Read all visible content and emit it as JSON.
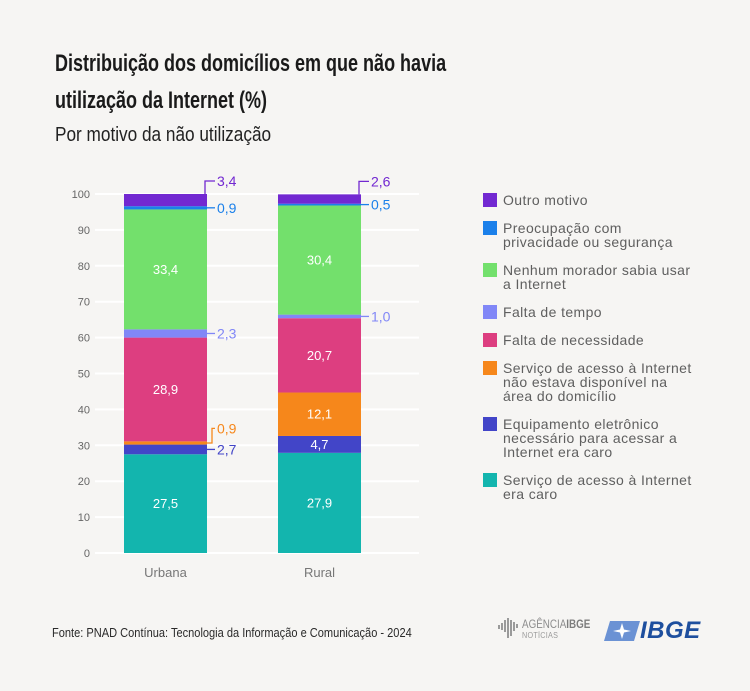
{
  "header": {
    "title_lines": [
      "Distribuição dos domicílios em que não havia",
      "utilização da Internet (%)"
    ],
    "subtitle": "Por motivo da não utilização"
  },
  "chart_data": {
    "type": "bar",
    "stacked": true,
    "title": "Distribuição dos domicílios em que não havia utilização da Internet (%)",
    "subtitle": "Por motivo da não utilização",
    "xlabel": "",
    "ylabel": "",
    "categories": [
      "Urbana",
      "Rural"
    ],
    "ylim": [
      0,
      100
    ],
    "yticks": [
      0,
      10,
      20,
      30,
      40,
      50,
      60,
      70,
      80,
      90,
      100
    ],
    "grid": true,
    "legend_position": "right",
    "series": [
      {
        "name": "Serviço de acesso à Internet era caro",
        "color": "#13b5ae",
        "values": [
          27.5,
          27.9
        ],
        "labels": [
          "27,5",
          "27,9"
        ]
      },
      {
        "name": "Equipamento eletrônico necessário para acessar a Internet era caro",
        "color": "#4245c8",
        "values": [
          2.7,
          4.7
        ],
        "labels": [
          "2,7",
          "4,7"
        ]
      },
      {
        "name": "Serviço de acesso à Internet não estava disponível na área do domicílio",
        "color": "#f6871b",
        "values": [
          0.9,
          12.1
        ],
        "labels": [
          "0,9",
          "12,1"
        ]
      },
      {
        "name": "Falta de necessidade",
        "color": "#dd3e80",
        "values": [
          28.9,
          20.7
        ],
        "labels": [
          "28,9",
          "20,7"
        ]
      },
      {
        "name": "Falta de tempo",
        "color": "#8187f7",
        "values": [
          2.3,
          1.0
        ],
        "labels": [
          "2,3",
          "1,0"
        ]
      },
      {
        "name": "Nenhum morador sabia usar a Internet",
        "color": "#73e06c",
        "values": [
          33.4,
          30.4
        ],
        "labels": [
          "33,4",
          "30,4"
        ]
      },
      {
        "name": "Preocupação com privacidade ou segurança",
        "color": "#1b80ea",
        "values": [
          0.9,
          0.5
        ],
        "labels": [
          "0,9",
          "0,5"
        ]
      },
      {
        "name": "Outro motivo",
        "color": "#7228d1",
        "values": [
          3.4,
          2.6
        ],
        "labels": [
          "3,4",
          "2,6"
        ]
      }
    ]
  },
  "legend": {
    "items": [
      {
        "lines": [
          "Outro motivo"
        ],
        "color": "#7228d1"
      },
      {
        "lines": [
          "Preocupação com",
          "privacidade ou segurança"
        ],
        "color": "#1b80ea"
      },
      {
        "lines": [
          "Nenhum morador sabia usar",
          "a Internet"
        ],
        "color": "#73e06c"
      },
      {
        "lines": [
          "Falta de tempo"
        ],
        "color": "#8187f7"
      },
      {
        "lines": [
          "Falta de necessidade"
        ],
        "color": "#dd3e80"
      },
      {
        "lines": [
          "Serviço de acesso à Internet",
          "não estava disponível na",
          "área do domicílio"
        ],
        "color": "#f6871b"
      },
      {
        "lines": [
          "Equipamento eletrônico",
          "necessário para acessar a",
          "Internet era caro"
        ],
        "color": "#4245c8"
      },
      {
        "lines": [
          "Serviço de acesso à Internet",
          "era caro"
        ],
        "color": "#13b5ae"
      }
    ]
  },
  "footer": {
    "source": "Fonte: PNAD Contínua: Tecnologia da Informação e Comunicação - 2024",
    "agency_logo": {
      "line1_a": "AGÊNCIA",
      "line1_b": "IBGE",
      "line2": "NOTÍCIAS"
    },
    "ibge_logo": {
      "text": "IBGE",
      "color": "#1e4f9e"
    }
  },
  "colors": {
    "background": "#f6f5f3",
    "gridline": "#ffffff",
    "axis_text": "#666666",
    "inside_label": "#ffffff"
  }
}
